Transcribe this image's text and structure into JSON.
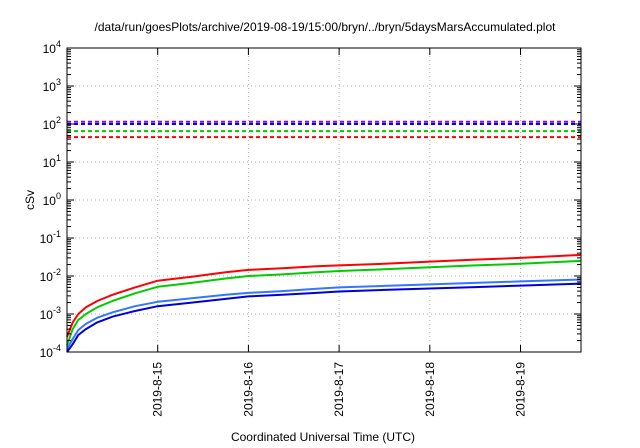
{
  "chart_data": {
    "type": "line",
    "title": "/data/run/goesPlots/archive/2019-08-19/15:00/bryn/../bryn/5daysMarsAccumulated.plot",
    "xlabel": "Coordinated Universal Time (UTC)",
    "ylabel": "cSv",
    "x_scale": "time",
    "y_scale": "log",
    "xlim": [
      "2019-08-14T00:00",
      "2019-08-19T16:00"
    ],
    "ylim": [
      0.0001,
      10000
    ],
    "grid": true,
    "x_ticks": [
      {
        "value": "2019-08-15T00:00",
        "label": "2019-8-15"
      },
      {
        "value": "2019-08-16T00:00",
        "label": "2019-8-16"
      },
      {
        "value": "2019-08-17T00:00",
        "label": "2019-8-17"
      },
      {
        "value": "2019-08-18T00:00",
        "label": "2019-8-18"
      },
      {
        "value": "2019-08-19T00:00",
        "label": "2019-8-19"
      }
    ],
    "y_ticks": [
      {
        "value": 0.0001,
        "base": "10",
        "exp": "-4"
      },
      {
        "value": 0.001,
        "base": "10",
        "exp": "-3"
      },
      {
        "value": 0.01,
        "base": "10",
        "exp": "-2"
      },
      {
        "value": 0.1,
        "base": "10",
        "exp": "-1"
      },
      {
        "value": 1,
        "base": "10",
        "exp": "0"
      },
      {
        "value": 10,
        "base": "10",
        "exp": "1"
      },
      {
        "value": 100,
        "base": "10",
        "exp": "2"
      },
      {
        "value": 1000,
        "base": "10",
        "exp": "3"
      },
      {
        "value": 10000,
        "base": "10",
        "exp": "4"
      }
    ],
    "reference_lines": [
      {
        "y": 115,
        "color": "#9400d3"
      },
      {
        "y": 100,
        "color": "#0000ff"
      },
      {
        "y": 65,
        "color": "#00cc00"
      },
      {
        "y": 45,
        "color": "#ff0000"
      }
    ],
    "series": [
      {
        "color": "#ff0000",
        "x": [
          "2019-08-14T00:00",
          "2019-08-14T01:30",
          "2019-08-14T03:00",
          "2019-08-14T05:00",
          "2019-08-14T08:00",
          "2019-08-14T12:00",
          "2019-08-14T18:00",
          "2019-08-15T00:00",
          "2019-08-15T09:00",
          "2019-08-15T18:00",
          "2019-08-16T00:00",
          "2019-08-16T09:00",
          "2019-08-16T18:00",
          "2019-08-17T00:00",
          "2019-08-17T12:00",
          "2019-08-18T00:00",
          "2019-08-18T12:00",
          "2019-08-19T00:00",
          "2019-08-19T16:00"
        ],
        "y": [
          0.00025,
          0.0006,
          0.001,
          0.0015,
          0.0022,
          0.0032,
          0.005,
          0.0075,
          0.0095,
          0.0125,
          0.0145,
          0.016,
          0.018,
          0.019,
          0.021,
          0.024,
          0.027,
          0.03,
          0.036
        ]
      },
      {
        "color": "#00cc00",
        "x": [
          "2019-08-14T00:00",
          "2019-08-14T01:30",
          "2019-08-14T03:00",
          "2019-08-14T05:00",
          "2019-08-14T08:00",
          "2019-08-14T12:00",
          "2019-08-14T18:00",
          "2019-08-15T00:00",
          "2019-08-15T09:00",
          "2019-08-15T18:00",
          "2019-08-16T00:00",
          "2019-08-16T09:00",
          "2019-08-16T18:00",
          "2019-08-17T00:00",
          "2019-08-17T12:00",
          "2019-08-18T00:00",
          "2019-08-18T12:00",
          "2019-08-19T00:00",
          "2019-08-19T16:00"
        ],
        "y": [
          0.00015,
          0.0004,
          0.0007,
          0.001,
          0.0015,
          0.0022,
          0.0035,
          0.0052,
          0.0066,
          0.0086,
          0.01,
          0.011,
          0.0125,
          0.0135,
          0.015,
          0.017,
          0.019,
          0.021,
          0.025
        ]
      },
      {
        "color": "#3377ff",
        "x": [
          "2019-08-14T00:00",
          "2019-08-14T01:30",
          "2019-08-14T03:00",
          "2019-08-14T05:00",
          "2019-08-14T08:00",
          "2019-08-14T12:00",
          "2019-08-14T18:00",
          "2019-08-15T00:00",
          "2019-08-15T09:00",
          "2019-08-15T18:00",
          "2019-08-16T00:00",
          "2019-08-16T09:00",
          "2019-08-16T18:00",
          "2019-08-17T00:00",
          "2019-08-17T12:00",
          "2019-08-18T00:00",
          "2019-08-18T12:00",
          "2019-08-19T00:00",
          "2019-08-19T16:00"
        ],
        "y": [
          0.00012,
          0.00022,
          0.00038,
          0.00055,
          0.0008,
          0.0011,
          0.0016,
          0.0021,
          0.0026,
          0.0032,
          0.0036,
          0.004,
          0.0046,
          0.005,
          0.0055,
          0.006,
          0.0066,
          0.0072,
          0.0081
        ]
      },
      {
        "color": "#0000dd",
        "x": [
          "2019-08-14T00:00",
          "2019-08-14T01:30",
          "2019-08-14T03:00",
          "2019-08-14T05:00",
          "2019-08-14T08:00",
          "2019-08-14T12:00",
          "2019-08-14T18:00",
          "2019-08-15T00:00",
          "2019-08-15T09:00",
          "2019-08-15T18:00",
          "2019-08-16T00:00",
          "2019-08-16T09:00",
          "2019-08-16T18:00",
          "2019-08-17T00:00",
          "2019-08-17T12:00",
          "2019-08-18T00:00",
          "2019-08-18T12:00",
          "2019-08-19T00:00",
          "2019-08-19T16:00"
        ],
        "y": [
          0.0001,
          0.00016,
          0.00028,
          0.0004,
          0.0006,
          0.00085,
          0.0012,
          0.0016,
          0.002,
          0.0025,
          0.0029,
          0.0032,
          0.0036,
          0.0039,
          0.0043,
          0.0047,
          0.0051,
          0.0056,
          0.0063
        ]
      }
    ]
  }
}
